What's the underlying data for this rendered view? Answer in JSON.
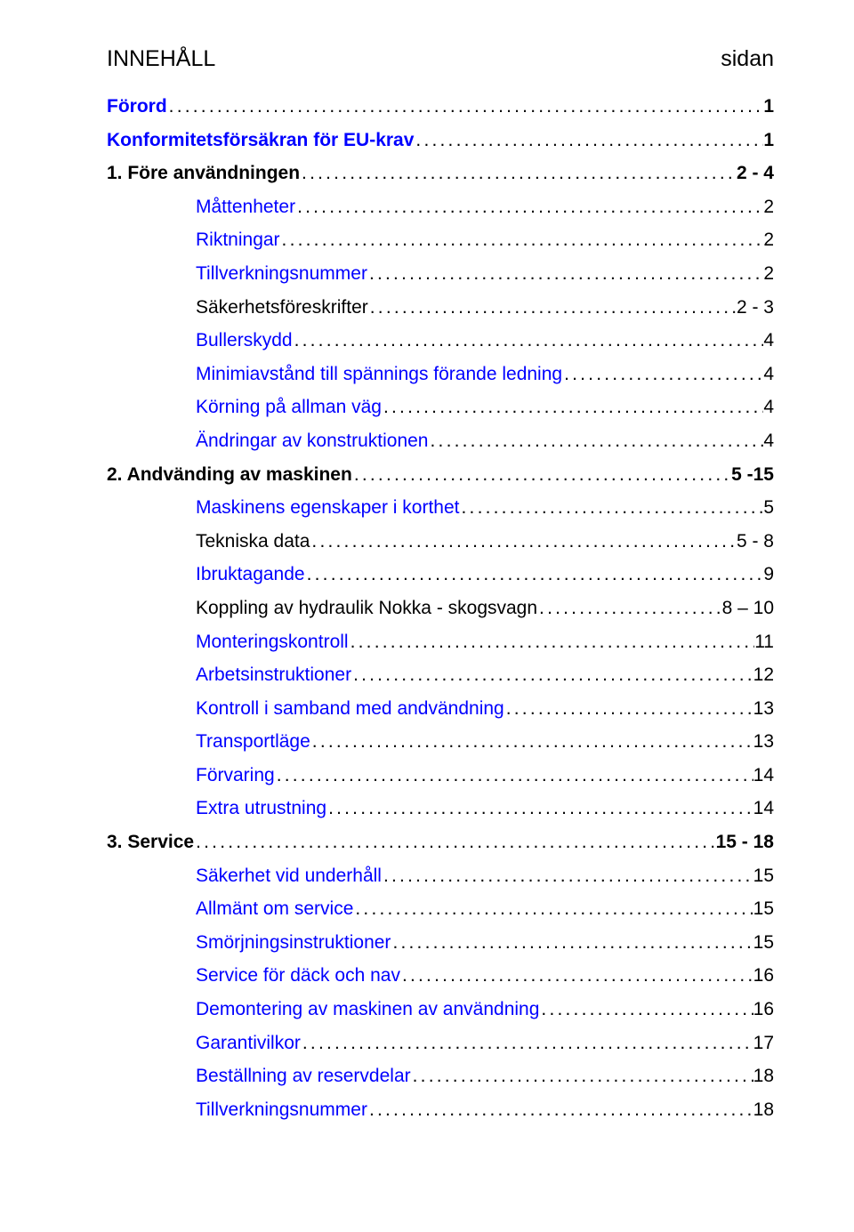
{
  "header": {
    "left": "INNEHÅLL",
    "right": "sidan"
  },
  "entries": [
    {
      "type": "section",
      "label": "Förord",
      "page": "1",
      "link": true
    },
    {
      "type": "section",
      "label": "Konformitetsförsäkran för EU-krav",
      "page": "1",
      "link": true
    },
    {
      "type": "section",
      "label": "1. Före användningen",
      "page": "2 - 4",
      "link": false
    },
    {
      "type": "sub",
      "label": "Måttenheter",
      "page": "2",
      "link": true
    },
    {
      "type": "sub",
      "label": "Riktningar",
      "page": "2",
      "link": true
    },
    {
      "type": "sub",
      "label": "Tillverkningsnummer",
      "page": "2",
      "link": true
    },
    {
      "type": "sub",
      "label": "Säkerhetsföreskrifter",
      "page": "2 - 3",
      "link": false
    },
    {
      "type": "sub",
      "label": "Bullerskydd",
      "page": "4",
      "link": true
    },
    {
      "type": "sub",
      "label": "Minimiavstånd till spännings förande ledning",
      "page": "4",
      "link": true
    },
    {
      "type": "sub",
      "label": "Körning på allman väg",
      "page": "4",
      "link": true
    },
    {
      "type": "sub",
      "label": "Ändringar av konstruktionen",
      "page": "4",
      "link": true
    },
    {
      "type": "section",
      "label": "2. Andvänding av maskinen",
      "page": "5 -15",
      "link": false
    },
    {
      "type": "sub",
      "label": "Maskinens egenskaper i korthet",
      "page": "5",
      "link": true
    },
    {
      "type": "sub",
      "label": "Tekniska data",
      "page": "5 - 8",
      "link": false
    },
    {
      "type": "sub",
      "label": "Ibruktagande",
      "page": "9",
      "link": true
    },
    {
      "type": "sub",
      "label": "Koppling av hydraulik Nokka - skogsvagn",
      "page": "8 – 10",
      "link": false
    },
    {
      "type": "sub",
      "label": "Monteringskontroll",
      "page": "11",
      "link": true
    },
    {
      "type": "sub",
      "label": "Arbetsinstruktioner",
      "page": "12",
      "link": true
    },
    {
      "type": "sub",
      "label": "Kontroll i samband med andvändning",
      "page": "13",
      "link": true
    },
    {
      "type": "sub",
      "label": "Transportläge",
      "page": "13",
      "link": true
    },
    {
      "type": "sub",
      "label": "Förvaring ",
      "page": "14",
      "link": true
    },
    {
      "type": "sub",
      "label": "Extra utrustning",
      "page": "14",
      "link": true
    },
    {
      "type": "section",
      "label": "3. Service                  ",
      "page": "15 - 18",
      "link": false
    },
    {
      "type": "sub",
      "label": "Säkerhet vid underhåll",
      "page": "15",
      "link": true
    },
    {
      "type": "sub",
      "label": "Allmänt om service",
      "page": "15",
      "link": true
    },
    {
      "type": "sub",
      "label": "Smörjningsinstruktioner",
      "page": "15",
      "link": true
    },
    {
      "type": "sub",
      "label": "Service för däck och nav",
      "page": "16",
      "link": true
    },
    {
      "type": "sub",
      "label": "Demontering av maskinen av användning",
      "page": "16",
      "link": true
    },
    {
      "type": "sub",
      "label": "Garantivilkor",
      "page": "17",
      "link": true
    },
    {
      "type": "sub",
      "label": "Beställning av reservdelar",
      "page": "18",
      "link": true
    },
    {
      "type": "sub",
      "label": "Tillverkningsnummer",
      "page": "18",
      "link": true
    }
  ]
}
